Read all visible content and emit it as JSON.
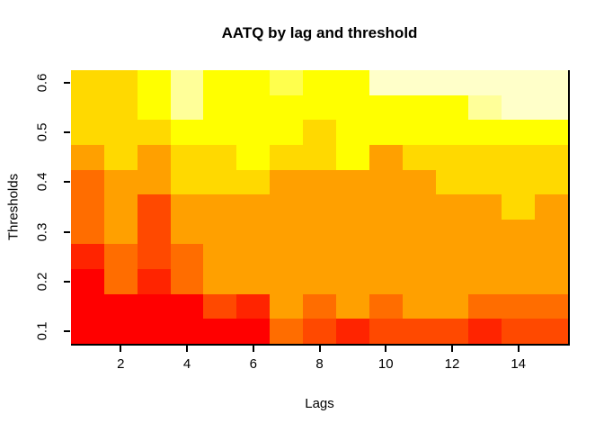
{
  "title": "AATQ by lag and threshold",
  "xlabel": "Lags",
  "ylabel": "Thresholds",
  "chart_data": {
    "type": "heatmap",
    "title": "AATQ by lag and threshold",
    "xlabel": "Lags",
    "ylabel": "Thresholds",
    "x_values": [
      1,
      2,
      3,
      4,
      5,
      6,
      7,
      8,
      9,
      10,
      11,
      12,
      13,
      14,
      15
    ],
    "y_values_top_to_bottom": [
      0.6,
      0.55,
      0.5,
      0.45,
      0.4,
      0.35,
      0.3,
      0.25,
      0.2,
      0.15,
      0.1
    ],
    "x_range": [
      0.5,
      15.5
    ],
    "y_range": [
      0.075,
      0.625
    ],
    "x_ticks": [
      "2",
      "4",
      "6",
      "8",
      "10",
      "12",
      "14"
    ],
    "x_tick_values": [
      2,
      4,
      6,
      8,
      10,
      12,
      14
    ],
    "y_ticks": [
      "0.1",
      "0.2",
      "0.3",
      "0.4",
      "0.5",
      "0.6"
    ],
    "y_tick_values": [
      0.1,
      0.2,
      0.3,
      0.4,
      0.5,
      0.6
    ],
    "grid": false,
    "legend": "none",
    "palette": {
      "name": "heat-colors",
      "levels_low_to_high": [
        "#FF0000",
        "#FF2400",
        "#FF4900",
        "#FF6D00",
        "#FFA000",
        "#FFD900",
        "#FFFF00",
        "#FFFF4D",
        "#FFFF99",
        "#FFFFC9"
      ]
    },
    "cell_colors_rows_top_to_bottom": [
      [
        "#FFD900",
        "#FFD900",
        "#FFFF00",
        "#FFFF99",
        "#FFFF00",
        "#FFFF00",
        "#FFFF4D",
        "#FFFF00",
        "#FFFF00",
        "#FFFFC9",
        "#FFFFC9",
        "#FFFFC9",
        "#FFFFC9",
        "#FFFFC9",
        "#FFFFC9"
      ],
      [
        "#FFD900",
        "#FFD900",
        "#FFFF00",
        "#FFFF99",
        "#FFFF00",
        "#FFFF00",
        "#FFFF00",
        "#FFFF00",
        "#FFFF00",
        "#FFFF00",
        "#FFFF00",
        "#FFFF00",
        "#FFFF99",
        "#FFFFC9",
        "#FFFFC9"
      ],
      [
        "#FFD900",
        "#FFD900",
        "#FFD900",
        "#FFFF00",
        "#FFFF00",
        "#FFFF00",
        "#FFFF00",
        "#FFD900",
        "#FFFF00",
        "#FFFF00",
        "#FFFF00",
        "#FFFF00",
        "#FFFF00",
        "#FFFF00",
        "#FFFF00"
      ],
      [
        "#FFA000",
        "#FFD900",
        "#FFA000",
        "#FFD900",
        "#FFD900",
        "#FFFF00",
        "#FFD900",
        "#FFD900",
        "#FFFF00",
        "#FFA000",
        "#FFD900",
        "#FFD900",
        "#FFD900",
        "#FFD900",
        "#FFD900"
      ],
      [
        "#FF6D00",
        "#FFA000",
        "#FFA000",
        "#FFD900",
        "#FFD900",
        "#FFD900",
        "#FFA000",
        "#FFA000",
        "#FFA000",
        "#FFA000",
        "#FFA000",
        "#FFD900",
        "#FFD900",
        "#FFD900",
        "#FFD900"
      ],
      [
        "#FF6D00",
        "#FFA000",
        "#FF4900",
        "#FFA000",
        "#FFA000",
        "#FFA000",
        "#FFA000",
        "#FFA000",
        "#FFA000",
        "#FFA000",
        "#FFA000",
        "#FFA000",
        "#FFA000",
        "#FFD900",
        "#FFA000"
      ],
      [
        "#FF6D00",
        "#FFA000",
        "#FF4900",
        "#FFA000",
        "#FFA000",
        "#FFA000",
        "#FFA000",
        "#FFA000",
        "#FFA000",
        "#FFA000",
        "#FFA000",
        "#FFA000",
        "#FFA000",
        "#FFA000",
        "#FFA000"
      ],
      [
        "#FF2400",
        "#FF6D00",
        "#FF4900",
        "#FF6D00",
        "#FFA000",
        "#FFA000",
        "#FFA000",
        "#FFA000",
        "#FFA000",
        "#FFA000",
        "#FFA000",
        "#FFA000",
        "#FFA000",
        "#FFA000",
        "#FFA000"
      ],
      [
        "#FF0000",
        "#FF6D00",
        "#FF2400",
        "#FF6D00",
        "#FFA000",
        "#FFA000",
        "#FFA000",
        "#FFA000",
        "#FFA000",
        "#FFA000",
        "#FFA000",
        "#FFA000",
        "#FFA000",
        "#FFA000",
        "#FFA000"
      ],
      [
        "#FF0000",
        "#FF0000",
        "#FF0000",
        "#FF0000",
        "#FF4900",
        "#FF2400",
        "#FFA000",
        "#FF6D00",
        "#FFA000",
        "#FF6D00",
        "#FFA000",
        "#FFA000",
        "#FF6D00",
        "#FF6D00",
        "#FF6D00"
      ],
      [
        "#FF0000",
        "#FF0000",
        "#FF0000",
        "#FF0000",
        "#FF0000",
        "#FF0000",
        "#FF6D00",
        "#FF4900",
        "#FF2400",
        "#FF4900",
        "#FF4900",
        "#FF4900",
        "#FF2400",
        "#FF4900",
        "#FF4900"
      ]
    ]
  }
}
